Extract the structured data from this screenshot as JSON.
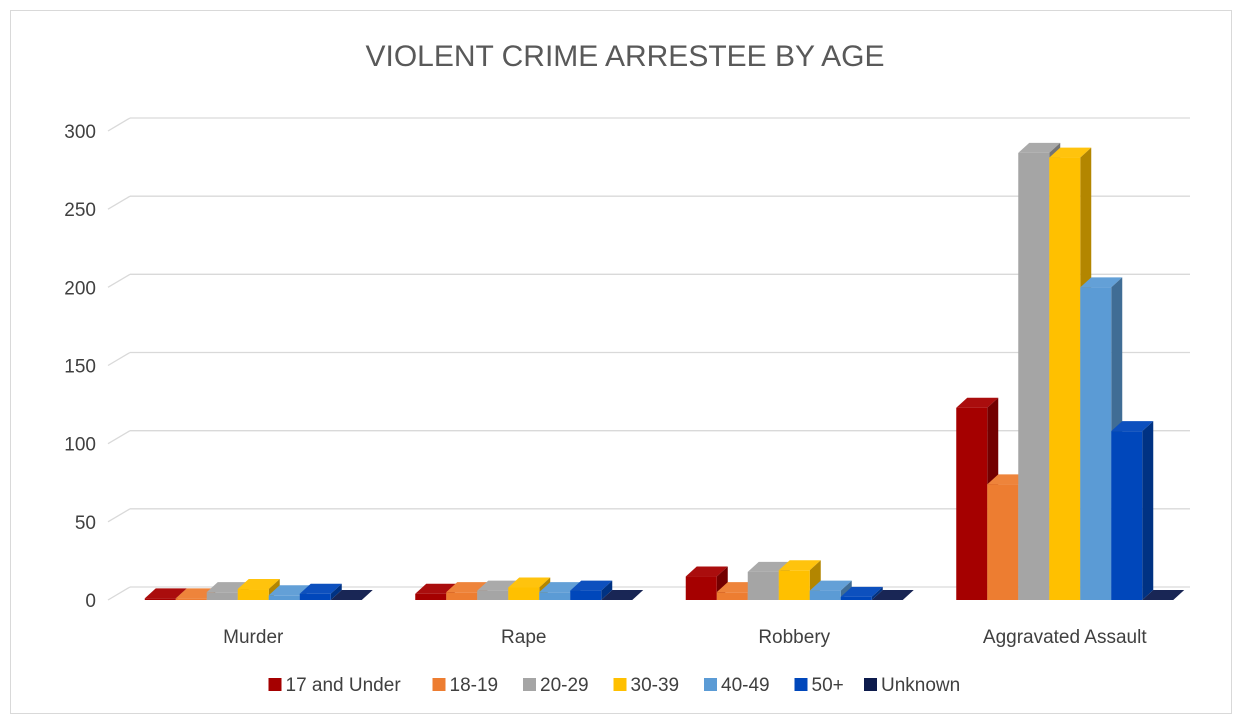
{
  "chart_data": {
    "type": "bar",
    "title": "VIOLENT CRIME ARRESTEE BY AGE",
    "categories": [
      "Murder",
      "Rape",
      "Robbery",
      "Aggravated Assault"
    ],
    "series": [
      {
        "name": "17 and Under",
        "color": "#A50000",
        "values": [
          1,
          4,
          15,
          123
        ]
      },
      {
        "name": "18-19",
        "color": "#ED7D31",
        "values": [
          1,
          5,
          5,
          74
        ]
      },
      {
        "name": "20-29",
        "color": "#A5A5A5",
        "values": [
          5,
          6,
          18,
          286
        ]
      },
      {
        "name": "30-39",
        "color": "#FFC000",
        "values": [
          7,
          8,
          19,
          283
        ]
      },
      {
        "name": "40-49",
        "color": "#5B9BD5",
        "values": [
          3,
          5,
          6,
          200
        ]
      },
      {
        "name": "50+",
        "color": "#0047BB",
        "values": [
          4,
          6,
          2,
          108
        ]
      },
      {
        "name": "Unknown",
        "color": "#0D1B4C",
        "values": [
          0,
          0,
          0,
          0
        ]
      }
    ],
    "ylim": [
      0,
      300
    ],
    "yticks": [
      0,
      50,
      100,
      150,
      200,
      250,
      300
    ],
    "grid": true,
    "legend": "bottom"
  }
}
